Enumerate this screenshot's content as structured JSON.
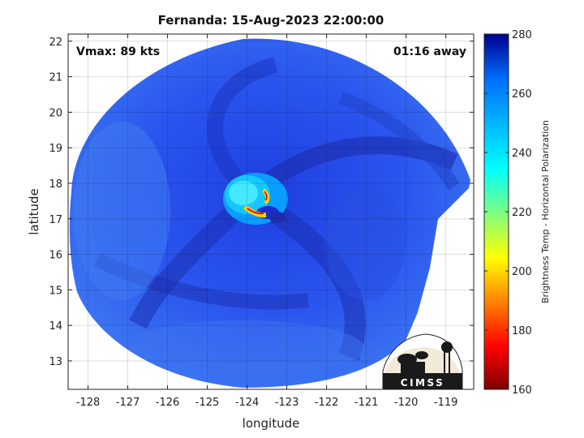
{
  "chart_data": {
    "type": "heatmap",
    "title": "Fernanda: 15-Aug-2023 22:00:00",
    "xlabel": "longitude",
    "ylabel": "latitude",
    "x_ticks": [
      -128,
      -127,
      -126,
      -125,
      -124,
      -123,
      -122,
      -121,
      -120,
      -119
    ],
    "y_ticks": [
      13,
      14,
      15,
      16,
      17,
      18,
      19,
      20,
      21,
      22
    ],
    "x_tick_labels": [
      "-128",
      "-127",
      "-126",
      "-125",
      "-124",
      "-123",
      "-122",
      "-121",
      "-120",
      "-119"
    ],
    "y_tick_labels": [
      "13",
      "14",
      "15",
      "16",
      "17",
      "18",
      "19",
      "20",
      "21",
      "22"
    ],
    "xlim": [
      -128.5,
      -118.3
    ],
    "ylim": [
      12.2,
      22.2
    ],
    "grid": true,
    "storm_center": {
      "lon": -123.6,
      "lat": 17.4
    },
    "colorbar": {
      "label": "Brightness Temp - Horizontal Polarization",
      "min": 160,
      "max": 280,
      "ticks": [
        160,
        180,
        200,
        220,
        240,
        260,
        280
      ],
      "tick_labels": [
        "160",
        "180",
        "200",
        "220",
        "240",
        "260",
        "280"
      ],
      "colors": [
        "#7f0000",
        "#ff0000",
        "#ffff00",
        "#00ffff",
        "#0070ff",
        "#00008f"
      ]
    },
    "annotations": {
      "vmax": "Vmax: 89 kts",
      "time_offset": "01:16 away"
    }
  },
  "logo": {
    "text": "CIMSS"
  }
}
